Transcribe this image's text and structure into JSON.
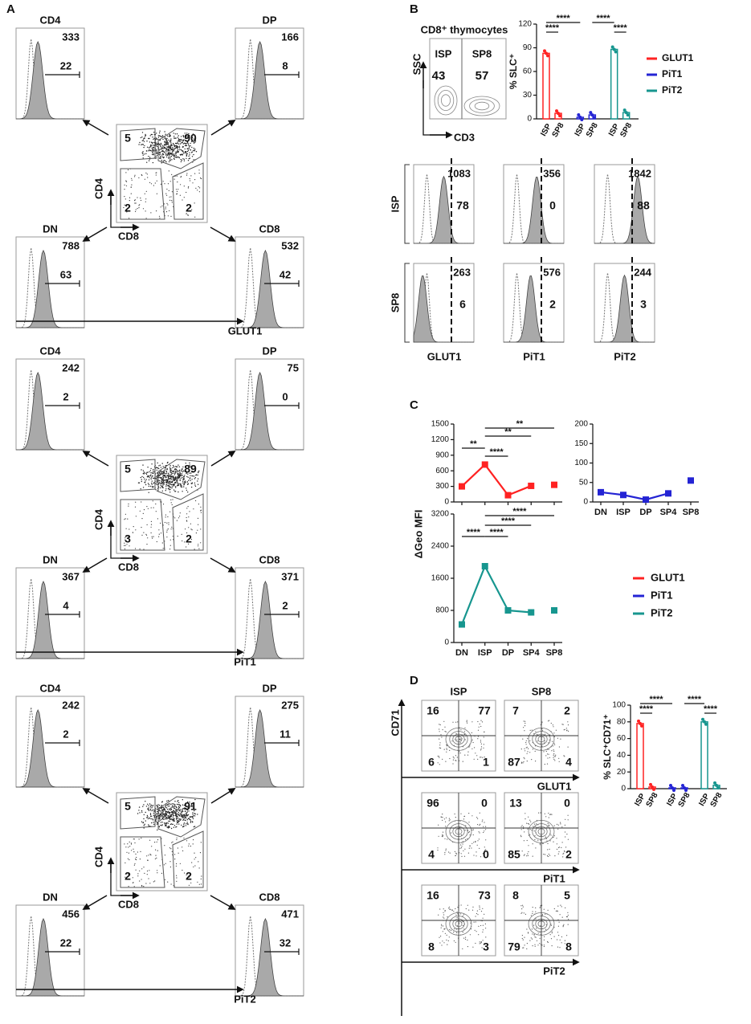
{
  "panel_labels": [
    "A",
    "B",
    "C",
    "D"
  ],
  "panel_a": {
    "blocks": [
      {
        "marker": "GLUT1",
        "y_axis": "CD4",
        "x_axis": "CD8",
        "quadrants": [
          5,
          90,
          2,
          2
        ],
        "histograms": [
          {
            "title": "CD4",
            "mfi": 333,
            "percent": 22
          },
          {
            "title": "DP",
            "mfi": 166,
            "percent": 8
          },
          {
            "title": "DN",
            "mfi": 788,
            "percent": 63
          },
          {
            "title": "CD8",
            "mfi": 532,
            "percent": 42
          }
        ]
      },
      {
        "marker": "PiT1",
        "y_axis": "CD4",
        "x_axis": "CD8",
        "quadrants": [
          5,
          89,
          3,
          2
        ],
        "histograms": [
          {
            "title": "CD4",
            "mfi": 242,
            "percent": 2
          },
          {
            "title": "DP",
            "mfi": 75,
            "percent": 0
          },
          {
            "title": "DN",
            "mfi": 367,
            "percent": 4
          },
          {
            "title": "CD8",
            "mfi": 371,
            "percent": 2
          }
        ]
      },
      {
        "marker": "PiT2",
        "y_axis": "CD4",
        "x_axis": "CD8",
        "quadrants": [
          5,
          91,
          2,
          2
        ],
        "histograms": [
          {
            "title": "CD4",
            "mfi": 242,
            "percent": 2
          },
          {
            "title": "DP",
            "mfi": 275,
            "percent": 11
          },
          {
            "title": "DN",
            "mfi": 456,
            "percent": 22
          },
          {
            "title": "CD8",
            "mfi": 471,
            "percent": 32
          }
        ]
      }
    ]
  },
  "panel_b": {
    "contour": {
      "title": "CD8⁺ thymocytes",
      "gates": [
        "ISP",
        "SP8"
      ],
      "gate_values": [
        43,
        57
      ],
      "y_axis": "SSC",
      "x_axis": "CD3"
    },
    "bar_chart": {
      "type": "bar",
      "ylabel": "% SLC⁺",
      "categories": [
        "ISP",
        "SP8"
      ],
      "ylim": [
        0,
        120
      ],
      "yticks": [
        0,
        30,
        60,
        90,
        120
      ],
      "series": [
        {
          "name": "GLUT1",
          "color": "#ff2222",
          "values": [
            83,
            7
          ]
        },
        {
          "name": "PiT1",
          "color": "#2424d4",
          "values": [
            2,
            5
          ]
        },
        {
          "name": "PiT2",
          "color": "#17968f",
          "values": [
            88,
            8
          ]
        }
      ],
      "annotations": [
        "****",
        "****",
        "****",
        "****"
      ]
    },
    "histograms": {
      "rows": [
        "ISP",
        "SP8"
      ],
      "columns": [
        "GLUT1",
        "PiT1",
        "PiT2"
      ],
      "mfi": [
        [
          1083,
          356,
          1842
        ],
        [
          263,
          576,
          244
        ]
      ],
      "percent": [
        [
          78,
          0,
          88
        ],
        [
          6,
          2,
          3
        ]
      ]
    }
  },
  "panel_c": {
    "ylabel": "ΔGeo MFI",
    "categories": [
      "DN",
      "ISP",
      "DP",
      "SP4",
      "SP8"
    ],
    "series": [
      {
        "name": "GLUT1",
        "color": "#ff2222"
      },
      {
        "name": "PiT1",
        "color": "#2424d4"
      },
      {
        "name": "PiT2",
        "color": "#17968f"
      }
    ],
    "charts": [
      {
        "type": "line",
        "ylim": [
          0,
          1500
        ],
        "yticks": [
          0,
          300,
          600,
          900,
          1200,
          1500
        ],
        "values": [
          300,
          720,
          130,
          310,
          330
        ],
        "annotations": [
          "**",
          "**",
          "****",
          "**"
        ]
      },
      {
        "type": "line",
        "ylim": [
          0,
          200
        ],
        "yticks": [
          0,
          50,
          100,
          150,
          200
        ],
        "values": [
          25,
          18,
          6,
          22,
          55
        ]
      },
      {
        "type": "line",
        "ylim": [
          0,
          3200
        ],
        "yticks": [
          0,
          800,
          1600,
          2400,
          3200
        ],
        "values": [
          450,
          1900,
          800,
          750,
          800
        ],
        "annotations": [
          "****",
          "****",
          "****",
          "****"
        ]
      }
    ]
  },
  "panel_d": {
    "columns": [
      "ISP",
      "SP8"
    ],
    "y_axis": "CD71",
    "rows": [
      {
        "marker": "GLUT1",
        "color": "#ff2222",
        "quadrants": [
          [
            16,
            77,
            6,
            1
          ],
          [
            7,
            2,
            87,
            4
          ]
        ]
      },
      {
        "marker": "PiT1",
        "color": "#2424d4",
        "quadrants": [
          [
            96,
            0,
            4,
            0
          ],
          [
            13,
            0,
            85,
            2
          ]
        ]
      },
      {
        "marker": "PiT2",
        "color": "#17968f",
        "quadrants": [
          [
            16,
            73,
            8,
            3
          ],
          [
            8,
            5,
            79,
            8
          ]
        ]
      }
    ],
    "bar_chart": {
      "type": "bar",
      "ylabel": "% SLC⁺CD71⁺",
      "categories": [
        "ISP",
        "SP8"
      ],
      "ylim": [
        0,
        100
      ],
      "yticks": [
        0,
        20,
        40,
        60,
        80,
        100
      ],
      "values": [
        [
          78,
          2
        ],
        [
          1,
          1
        ],
        [
          80,
          4
        ]
      ],
      "annotations": [
        "****",
        "****",
        "****",
        "****"
      ]
    }
  }
}
